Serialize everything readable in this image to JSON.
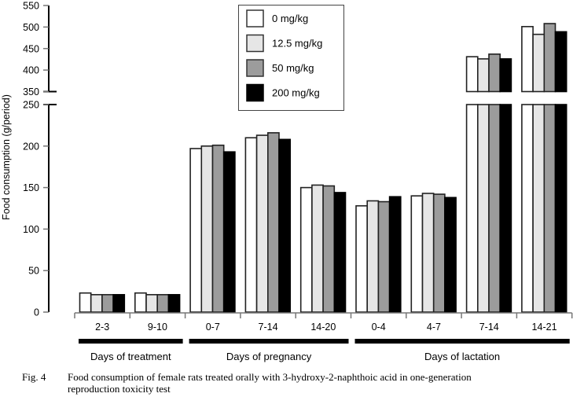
{
  "chart_data": {
    "type": "bar",
    "title": "",
    "xlabel": "",
    "ylabel": "Food consumption (g/period)",
    "y_axis": {
      "broken": true,
      "lower_range": [
        0,
        250
      ],
      "lower_ticks": [
        0,
        50,
        100,
        150,
        200,
        250
      ],
      "upper_range": [
        350,
        550
      ],
      "upper_ticks": [
        350,
        400,
        450,
        500,
        550
      ]
    },
    "categories": [
      "2-3",
      "9-10",
      "0-7",
      "7-14",
      "14-20",
      "0-4",
      "4-7",
      "7-14",
      "14-21"
    ],
    "category_groups": [
      {
        "label": "Days of treatment",
        "categories": [
          "2-3",
          "9-10"
        ]
      },
      {
        "label": "Days of pregnancy",
        "categories": [
          "0-7",
          "7-14",
          "14-20"
        ]
      },
      {
        "label": "Days of lactation",
        "categories": [
          "0-4",
          "4-7",
          "7-14",
          "14-21"
        ]
      }
    ],
    "series": [
      {
        "name": "0 mg/kg",
        "color": "#ffffff",
        "values": [
          23,
          23,
          197,
          210,
          150,
          128,
          140,
          431,
          501
        ]
      },
      {
        "name": "12.5 mg/kg",
        "color": "#e6e6e6",
        "values": [
          21,
          21,
          200,
          213,
          153,
          134,
          143,
          426,
          483
        ]
      },
      {
        "name": "50 mg/kg",
        "color": "#9c9c9c",
        "values": [
          21,
          21,
          201,
          216,
          152,
          133,
          142,
          437,
          508
        ]
      },
      {
        "name": "200 mg/kg",
        "color": "#000000",
        "values": [
          21,
          21,
          193,
          208,
          144,
          139,
          138,
          426,
          489
        ]
      }
    ],
    "legend": {
      "placement": "top-center"
    },
    "grid": false
  },
  "caption": {
    "fig_label": "Fig. 4",
    "line1": "Food consumption of female rats treated orally with 3-hydroxy-2-naphthoic acid in one-generation",
    "line2": "reproduction toxicity test"
  }
}
